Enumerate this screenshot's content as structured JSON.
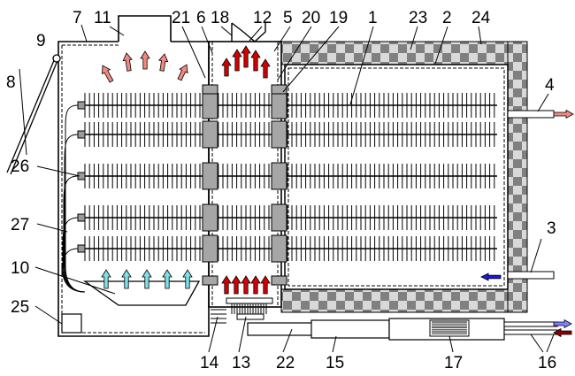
{
  "labels": {
    "n1": "1",
    "n2": "2",
    "n3": "3",
    "n4": "4",
    "n5": "5",
    "n6": "6",
    "n7": "7",
    "n8": "8",
    "n9": "9",
    "n10": "10",
    "n11": "11",
    "n12": "12",
    "n13": "13",
    "n14": "14",
    "n15": "15",
    "n16": "16",
    "n17": "17",
    "n18": "18",
    "n19": "19",
    "n20": "20",
    "n21": "21",
    "n22": "22",
    "n23": "23",
    "n24": "24",
    "n25": "25",
    "n26": "26",
    "n27": "27"
  },
  "colors": {
    "hot_arrow": "#d40000",
    "warm_arrow": "#f08a80",
    "cool_arrow": "#7fe0e6",
    "water_in_arrow": "#8080ff",
    "water_out_arrow": "#8b0000",
    "flow_arrow": "#1a1adc",
    "insulation_dark": "#808080",
    "insulation_light": "#d9d9d9"
  }
}
